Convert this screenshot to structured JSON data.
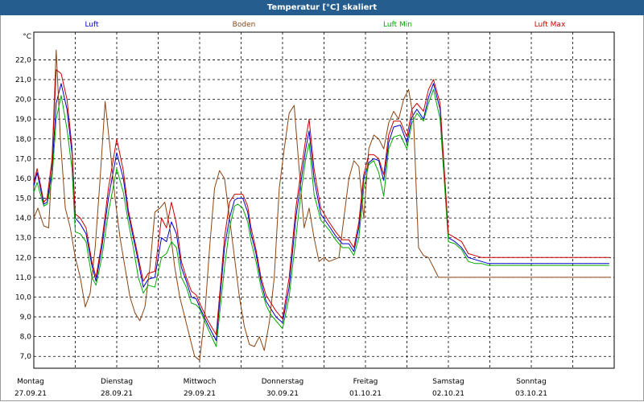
{
  "window": {
    "title": "Temperatur [°C] skaliert"
  },
  "chart_data": {
    "type": "line",
    "title": "Temperatur [°C] skaliert",
    "ylabel": "°C",
    "ylim": [
      6.4,
      23.4
    ],
    "yticks": [
      7.0,
      8.0,
      9.0,
      10.0,
      11.0,
      12.0,
      13.0,
      14.0,
      15.0,
      16.0,
      17.0,
      18.0,
      19.0,
      20.0,
      21.0,
      22.0
    ],
    "ytick_labels": [
      "7,0",
      "8,0",
      "9,0",
      "10,0",
      "11,0",
      "12,0",
      "13,0",
      "14,0",
      "15,0",
      "16,0",
      "17,0",
      "18,0",
      "19,0",
      "20,0",
      "21,0",
      "22,0"
    ],
    "xlim": [
      0,
      7
    ],
    "days": [
      {
        "name": "Montag",
        "date": "27.09.21"
      },
      {
        "name": "Dienstag",
        "date": "28.09.21"
      },
      {
        "name": "Mittwoch",
        "date": "29.09.21"
      },
      {
        "name": "Donnerstag",
        "date": "30.09.21"
      },
      {
        "name": "Freitag",
        "date": "01.10.21"
      },
      {
        "name": "Samstag",
        "date": "02.10.21"
      },
      {
        "name": "Sonntag",
        "date": "03.10.21"
      }
    ],
    "grid": true,
    "legend_position": "top",
    "series": [
      {
        "name": "Luft",
        "color": "#0000cc",
        "x": [
          0.0,
          0.04,
          0.08,
          0.12,
          0.16,
          0.22,
          0.27,
          0.33,
          0.4,
          0.46,
          0.5,
          0.56,
          0.63,
          0.7,
          0.75,
          0.82,
          0.9,
          1.0,
          1.08,
          1.14,
          1.2,
          1.26,
          1.32,
          1.38,
          1.46,
          1.54,
          1.6,
          1.66,
          1.72,
          1.78,
          1.84,
          1.9,
          1.96,
          2.0,
          2.1,
          2.2,
          2.3,
          2.36,
          2.42,
          2.46,
          2.52,
          2.58,
          2.62,
          2.68,
          2.74,
          2.8,
          2.86,
          2.92,
          3.0,
          3.08,
          3.16,
          3.22,
          3.28,
          3.32,
          3.38,
          3.46,
          3.56,
          3.64,
          3.72,
          3.8,
          3.86,
          3.92,
          3.98,
          4.04,
          4.1,
          4.16,
          4.22,
          4.28,
          4.34,
          4.42,
          4.5,
          4.56,
          4.62,
          4.7,
          4.76,
          4.82,
          4.9,
          5.0,
          5.08,
          5.16,
          5.24,
          5.32,
          5.4,
          5.48,
          5.56,
          5.62,
          5.68,
          5.74,
          5.8,
          5.86,
          5.9,
          5.96,
          6.02,
          6.08,
          6.14,
          6.2,
          6.26,
          6.32,
          6.38,
          6.44,
          6.5,
          6.56,
          6.6,
          6.64,
          6.68,
          6.72,
          6.78,
          6.84,
          6.9,
          6.94
        ],
        "y": [
          15.6,
          16.3,
          15.5,
          14.7,
          14.8,
          16.5,
          19.8,
          20.8,
          19.5,
          17.3,
          14.0,
          13.7,
          13.2,
          11.6,
          10.8,
          12.5,
          15.0,
          17.3,
          16.0,
          14.2,
          13.0,
          11.8,
          10.5,
          10.9,
          11.0,
          13.0,
          12.8,
          13.8,
          13.2,
          11.5,
          10.8,
          10.0,
          9.9,
          9.5,
          8.6,
          7.8,
          12.5,
          14.0,
          14.9,
          15.0,
          15.0,
          14.3,
          13.2,
          12.2,
          10.8,
          9.8,
          9.4,
          9.0,
          8.7,
          10.5,
          14.0,
          15.8,
          17.5,
          18.4,
          16.0,
          14.2,
          13.6,
          13.1,
          12.7,
          12.7,
          12.3,
          13.5,
          16.0,
          16.8,
          17.0,
          16.9,
          15.9,
          17.8,
          18.6,
          18.7,
          17.8,
          19.1,
          19.5,
          19.0,
          20.1,
          20.8,
          19.5,
          13.0,
          12.8,
          12.5,
          12.0,
          11.9,
          11.8,
          11.7,
          11.7,
          11.7,
          11.7,
          11.7,
          11.7,
          11.7,
          11.7,
          11.7,
          11.7,
          11.7,
          11.7,
          11.7,
          11.7,
          11.7,
          11.7,
          11.7,
          11.7,
          11.7,
          11.7,
          11.7,
          11.7,
          11.7,
          11.7,
          11.7,
          11.7,
          11.7
        ]
      },
      {
        "name": "Boden",
        "color": "#8b4513",
        "x": [
          0.0,
          0.05,
          0.12,
          0.18,
          0.22,
          0.27,
          0.32,
          0.38,
          0.44,
          0.5,
          0.56,
          0.62,
          0.68,
          0.74,
          0.8,
          0.86,
          0.92,
          0.98,
          1.04,
          1.1,
          1.16,
          1.22,
          1.28,
          1.34,
          1.4,
          1.46,
          1.52,
          1.58,
          1.64,
          1.7,
          1.76,
          1.82,
          1.88,
          1.94,
          2.0,
          2.06,
          2.12,
          2.18,
          2.24,
          2.3,
          2.36,
          2.42,
          2.48,
          2.54,
          2.6,
          2.66,
          2.72,
          2.78,
          2.84,
          2.9,
          2.96,
          3.02,
          3.08,
          3.14,
          3.2,
          3.26,
          3.32,
          3.38,
          3.44,
          3.5,
          3.56,
          3.62,
          3.68,
          3.74,
          3.8,
          3.86,
          3.92,
          3.98,
          4.04,
          4.1,
          4.16,
          4.22,
          4.28,
          4.34,
          4.4,
          4.46,
          4.52,
          4.58,
          4.64,
          4.7,
          4.76,
          4.82,
          4.88,
          4.94,
          6.9,
          6.96
        ],
        "y": [
          14.0,
          14.5,
          13.6,
          13.5,
          17.0,
          22.5,
          18.0,
          14.5,
          13.5,
          12.0,
          11.0,
          9.5,
          10.2,
          12.5,
          16.0,
          19.9,
          17.5,
          15.0,
          13.0,
          11.5,
          10.0,
          9.2,
          8.8,
          9.5,
          11.5,
          14.3,
          14.5,
          14.8,
          13.5,
          11.5,
          10.0,
          9.0,
          8.0,
          7.0,
          6.8,
          9.0,
          12.5,
          15.5,
          16.4,
          16.0,
          14.0,
          12.0,
          10.0,
          8.5,
          7.6,
          7.5,
          8.0,
          7.3,
          8.7,
          11.0,
          15.5,
          17.5,
          19.3,
          19.7,
          16.5,
          13.5,
          14.5,
          13.0,
          11.8,
          12.0,
          11.8,
          11.9,
          12.0,
          14.0,
          16.0,
          16.9,
          16.6,
          14.0,
          17.5,
          18.2,
          18.0,
          17.5,
          18.8,
          19.4,
          19.0,
          20.0,
          20.5,
          19.0,
          12.5,
          12.1,
          12.0,
          11.5,
          11.0,
          11.0,
          11.0,
          11.0
        ]
      },
      {
        "name": "Luft Min",
        "color": "#00aa00",
        "x": [
          0.0,
          0.04,
          0.08,
          0.12,
          0.16,
          0.22,
          0.27,
          0.33,
          0.4,
          0.46,
          0.5,
          0.56,
          0.63,
          0.7,
          0.75,
          0.82,
          0.9,
          1.0,
          1.08,
          1.14,
          1.2,
          1.26,
          1.32,
          1.38,
          1.46,
          1.54,
          1.6,
          1.66,
          1.72,
          1.78,
          1.84,
          1.9,
          1.96,
          2.0,
          2.1,
          2.2,
          2.3,
          2.36,
          2.42,
          2.46,
          2.52,
          2.58,
          2.62,
          2.68,
          2.74,
          2.8,
          2.86,
          2.92,
          3.0,
          3.08,
          3.16,
          3.22,
          3.28,
          3.32,
          3.38,
          3.46,
          3.56,
          3.64,
          3.72,
          3.8,
          3.86,
          3.92,
          3.98,
          4.04,
          4.1,
          4.16,
          4.22,
          4.28,
          4.34,
          4.42,
          4.5,
          4.56,
          4.62,
          4.7,
          4.76,
          4.82,
          4.9,
          5.0,
          5.08,
          5.16,
          5.24,
          5.32,
          5.4,
          5.48,
          5.56,
          5.62,
          5.68,
          5.74,
          5.8,
          5.86,
          5.9,
          5.96,
          6.02,
          6.08,
          6.14,
          6.2,
          6.26,
          6.32,
          6.38,
          6.44,
          6.5,
          6.56,
          6.6,
          6.64,
          6.68,
          6.72,
          6.78,
          6.84,
          6.9,
          6.94
        ],
        "y": [
          15.3,
          15.8,
          15.2,
          14.6,
          14.7,
          16.0,
          19.0,
          20.2,
          18.5,
          16.5,
          13.3,
          13.2,
          12.8,
          11.0,
          10.6,
          12.0,
          14.3,
          16.5,
          15.3,
          13.8,
          12.5,
          11.0,
          10.2,
          10.6,
          10.5,
          12.0,
          12.2,
          12.8,
          12.5,
          11.0,
          10.5,
          9.7,
          9.6,
          9.4,
          8.4,
          7.5,
          11.5,
          13.5,
          14.6,
          14.7,
          14.5,
          13.8,
          12.8,
          11.8,
          10.5,
          9.6,
          9.1,
          8.8,
          8.4,
          10.0,
          13.0,
          15.2,
          17.0,
          17.8,
          15.2,
          13.9,
          13.4,
          12.9,
          12.5,
          12.5,
          12.1,
          13.0,
          15.5,
          16.7,
          16.9,
          16.3,
          15.1,
          17.5,
          18.1,
          18.2,
          17.5,
          18.8,
          19.3,
          18.9,
          19.8,
          20.5,
          19.0,
          12.8,
          12.7,
          12.4,
          11.8,
          11.7,
          11.7,
          11.6,
          11.6,
          11.6,
          11.6,
          11.6,
          11.6,
          11.6,
          11.6,
          11.6,
          11.6,
          11.6,
          11.6,
          11.6,
          11.6,
          11.6,
          11.6,
          11.6,
          11.6,
          11.6,
          11.6,
          11.6,
          11.6,
          11.6,
          11.6,
          11.6,
          11.6,
          11.6
        ]
      },
      {
        "name": "Luft Max",
        "color": "#cc0000",
        "x": [
          0.0,
          0.04,
          0.08,
          0.12,
          0.16,
          0.22,
          0.27,
          0.33,
          0.4,
          0.46,
          0.5,
          0.56,
          0.63,
          0.7,
          0.75,
          0.82,
          0.9,
          1.0,
          1.08,
          1.14,
          1.2,
          1.26,
          1.32,
          1.38,
          1.46,
          1.54,
          1.6,
          1.66,
          1.72,
          1.78,
          1.84,
          1.9,
          1.96,
          2.0,
          2.1,
          2.2,
          2.3,
          2.36,
          2.42,
          2.46,
          2.52,
          2.58,
          2.62,
          2.68,
          2.74,
          2.8,
          2.86,
          2.92,
          3.0,
          3.08,
          3.16,
          3.22,
          3.28,
          3.32,
          3.38,
          3.46,
          3.56,
          3.64,
          3.72,
          3.8,
          3.86,
          3.92,
          3.98,
          4.04,
          4.1,
          4.16,
          4.22,
          4.28,
          4.34,
          4.42,
          4.5,
          4.56,
          4.62,
          4.7,
          4.76,
          4.82,
          4.9,
          5.0,
          5.08,
          5.16,
          5.24,
          5.32,
          5.4,
          5.48,
          5.56,
          5.62,
          5.68,
          5.74,
          5.8,
          5.86,
          5.9,
          5.96,
          6.02,
          6.08,
          6.14,
          6.2,
          6.26,
          6.32,
          6.38,
          6.44,
          6.5,
          6.56,
          6.6,
          6.64,
          6.68,
          6.72,
          6.78,
          6.84,
          6.9,
          6.94
        ],
        "y": [
          15.8,
          16.5,
          15.7,
          14.8,
          15.0,
          17.0,
          21.5,
          21.3,
          20.0,
          17.6,
          14.2,
          14.0,
          13.5,
          11.8,
          11.0,
          12.8,
          15.5,
          18.0,
          16.4,
          14.4,
          13.2,
          12.0,
          10.8,
          11.2,
          11.3,
          14.0,
          13.5,
          14.8,
          13.7,
          11.8,
          11.0,
          10.3,
          10.1,
          9.7,
          8.8,
          8.1,
          13.0,
          14.8,
          15.2,
          15.2,
          15.2,
          14.6,
          13.5,
          12.4,
          11.0,
          10.1,
          9.7,
          9.3,
          8.9,
          11.0,
          14.5,
          16.3,
          18.0,
          19.0,
          16.5,
          14.5,
          13.8,
          13.3,
          12.9,
          12.9,
          12.5,
          13.8,
          16.2,
          17.2,
          17.2,
          17.0,
          16.2,
          18.2,
          18.9,
          18.9,
          18.1,
          19.5,
          19.8,
          19.4,
          20.5,
          21.0,
          19.8,
          13.2,
          13.0,
          12.8,
          12.2,
          12.1,
          12.0,
          12.0,
          12.0,
          12.0,
          12.0,
          12.0,
          12.0,
          12.0,
          12.0,
          12.0,
          12.0,
          12.0,
          12.0,
          12.0,
          12.0,
          12.0,
          12.0,
          12.0,
          12.0,
          12.0,
          12.0,
          12.0,
          12.0,
          12.0,
          12.0,
          12.0,
          12.0,
          12.0
        ]
      }
    ]
  }
}
